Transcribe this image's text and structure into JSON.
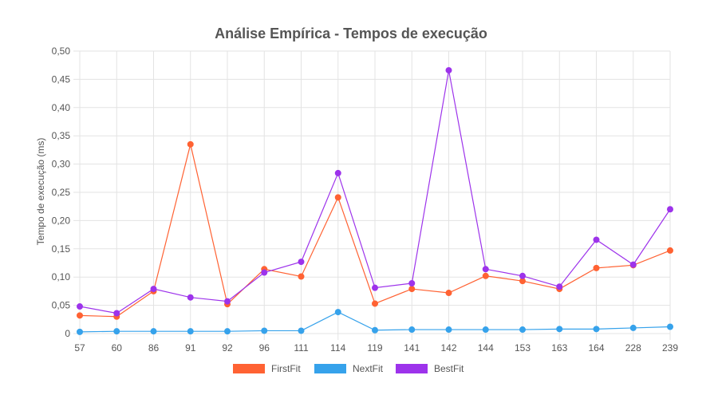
{
  "chart_data": {
    "type": "line",
    "title": "Análise Empírica - Tempos de execução",
    "xlabel": "",
    "ylabel": "Tempo de execução (ms)",
    "categories": [
      "57",
      "60",
      "86",
      "91",
      "92",
      "96",
      "111",
      "114",
      "119",
      "141",
      "142",
      "144",
      "153",
      "163",
      "164",
      "228",
      "239"
    ],
    "yticks": [
      "0",
      "0,05",
      "0,10",
      "0,15",
      "0,20",
      "0,25",
      "0,30",
      "0,35",
      "0,40",
      "0,45",
      "0,50"
    ],
    "ylim": [
      0,
      0.5
    ],
    "grid": true,
    "legend_position": "bottom",
    "series": [
      {
        "name": "FirstFit",
        "color": "#ff6233",
        "values": [
          0.032,
          0.03,
          0.075,
          0.335,
          0.052,
          0.114,
          0.101,
          0.241,
          0.053,
          0.079,
          0.072,
          0.102,
          0.093,
          0.079,
          0.116,
          0.121,
          0.147
        ]
      },
      {
        "name": "NextFit",
        "color": "#36a2eb",
        "values": [
          0.003,
          0.004,
          0.004,
          0.004,
          0.004,
          0.005,
          0.005,
          0.038,
          0.006,
          0.007,
          0.007,
          0.007,
          0.007,
          0.008,
          0.008,
          0.01,
          0.012
        ]
      },
      {
        "name": "BestFit",
        "color": "#9d33eb",
        "values": [
          0.048,
          0.036,
          0.079,
          0.064,
          0.057,
          0.108,
          0.127,
          0.284,
          0.081,
          0.089,
          0.466,
          0.114,
          0.102,
          0.083,
          0.166,
          0.122,
          0.22
        ]
      }
    ]
  }
}
